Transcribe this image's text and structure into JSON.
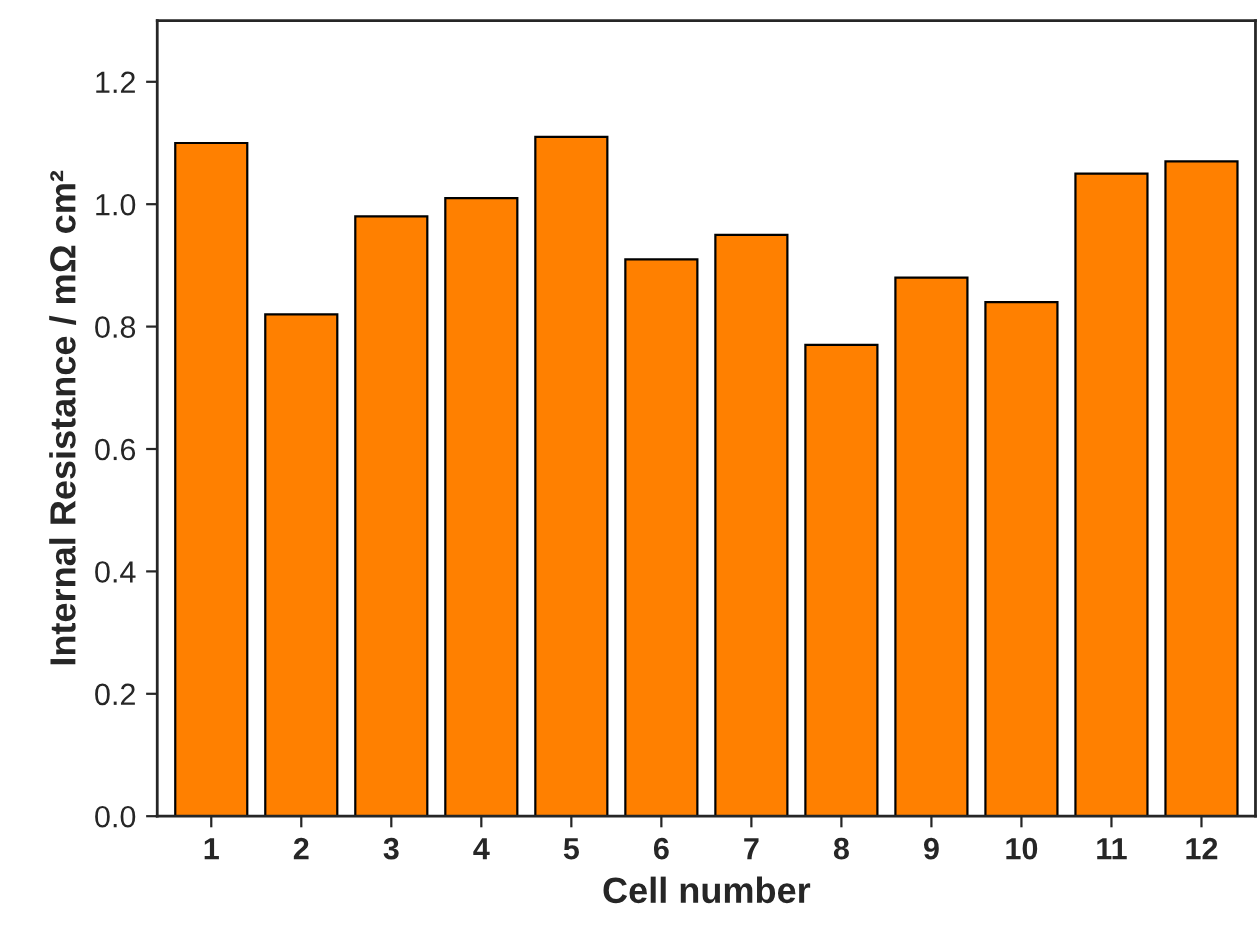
{
  "chart_data": {
    "type": "bar",
    "xlabel": "Cell number",
    "ylabel": "Internal Resistance / mΩ cm²",
    "categories": [
      "1",
      "2",
      "3",
      "4",
      "5",
      "6",
      "7",
      "8",
      "9",
      "10",
      "11",
      "12"
    ],
    "series": [
      {
        "color": "#ff8000",
        "values": [
          1.1,
          0.82,
          0.98,
          1.01,
          1.11,
          0.91,
          0.95,
          0.77,
          0.88,
          0.84,
          1.05,
          1.07
        ]
      }
    ],
    "ylim": [
      0,
      1.3
    ],
    "yticks": [
      {
        "value": 0,
        "label": "0.0"
      },
      {
        "value": 0.2,
        "label": "0.2"
      },
      {
        "value": 0.4,
        "label": "0.4"
      },
      {
        "value": 0.6,
        "label": "0.6"
      },
      {
        "value": 0.8,
        "label": "0.8"
      },
      {
        "value": 1.0,
        "label": "1.0"
      },
      {
        "value": 1.2,
        "label": "1.2"
      }
    ],
    "grid": false,
    "legend": false
  }
}
